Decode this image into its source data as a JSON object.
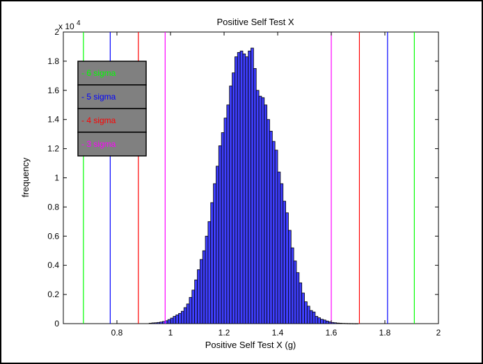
{
  "chart_data": {
    "type": "bar",
    "title": "Positive Self Test X",
    "xlabel": "Positive Self Test X (g)",
    "ylabel": "frequency",
    "xlim": [
      0.6,
      2.0
    ],
    "ylim": [
      0,
      20000
    ],
    "x_ticks": [
      0.8,
      1.0,
      1.2,
      1.4,
      1.6,
      1.8,
      2.0
    ],
    "x_tick_labels": [
      "0.8",
      "1",
      "1.2",
      "1.4",
      "1.6",
      "1.8",
      "2"
    ],
    "y_ticks": [
      0,
      2000,
      4000,
      6000,
      8000,
      10000,
      12000,
      14000,
      16000,
      18000,
      20000
    ],
    "y_tick_labels": [
      "0",
      "0.2",
      "0.4",
      "0.6",
      "0.8",
      "1",
      "1.2",
      "1.4",
      "1.6",
      "1.8",
      "2"
    ],
    "y_exponent_label": "x 10",
    "y_exponent_power": "4",
    "bar_color": "#3f3fff",
    "bar_edge_color": "#000000",
    "bin_width": 0.01,
    "histogram": {
      "bin_centers": [
        0.885,
        0.895,
        0.905,
        0.915,
        0.925,
        0.935,
        0.945,
        0.955,
        0.965,
        0.975,
        0.985,
        0.995,
        1.005,
        1.015,
        1.025,
        1.035,
        1.045,
        1.055,
        1.065,
        1.075,
        1.085,
        1.095,
        1.105,
        1.115,
        1.125,
        1.135,
        1.145,
        1.155,
        1.165,
        1.175,
        1.185,
        1.195,
        1.205,
        1.215,
        1.225,
        1.235,
        1.245,
        1.255,
        1.265,
        1.275,
        1.285,
        1.295,
        1.305,
        1.315,
        1.325,
        1.335,
        1.345,
        1.355,
        1.365,
        1.375,
        1.385,
        1.395,
        1.405,
        1.415,
        1.425,
        1.435,
        1.445,
        1.455,
        1.465,
        1.475,
        1.485,
        1.495,
        1.505,
        1.515,
        1.525,
        1.535,
        1.545,
        1.555,
        1.565,
        1.575,
        1.585,
        1.595,
        1.605,
        1.615,
        1.625,
        1.635,
        1.645,
        1.655,
        1.665,
        1.675,
        1.685,
        1.695
      ],
      "counts": [
        0,
        0,
        0,
        0,
        30,
        50,
        60,
        80,
        110,
        150,
        200,
        280,
        380,
        500,
        600,
        700,
        850,
        1100,
        1350,
        1800,
        2300,
        3000,
        3700,
        4400,
        5000,
        6000,
        7000,
        8300,
        9600,
        10800,
        12200,
        13100,
        14100,
        15000,
        16300,
        17200,
        18300,
        18600,
        18700,
        18500,
        18300,
        18700,
        18900,
        17500,
        16000,
        15600,
        15500,
        15000,
        14000,
        13200,
        12500,
        11900,
        10400,
        9600,
        8400,
        7600,
        6400,
        5200,
        4300,
        3500,
        2800,
        2100,
        1500,
        1200,
        900,
        800,
        500,
        400,
        300,
        250,
        180,
        120,
        80,
        60,
        40,
        30,
        20,
        15,
        10,
        8,
        5,
        3
      ]
    },
    "sigma_lines": [
      {
        "name": "6 sigma",
        "color": "#00ff00",
        "x": [
          0.675,
          1.91
        ]
      },
      {
        "name": "5 sigma",
        "color": "#0000ff",
        "x": [
          0.775,
          1.81
        ]
      },
      {
        "name": "4 sigma",
        "color": "#ff0000",
        "x": [
          0.88,
          1.705
        ]
      },
      {
        "name": "3 sigma",
        "color": "#ff00ff",
        "x": [
          0.98,
          1.6
        ]
      }
    ],
    "legend": {
      "placement": "top-left",
      "background": "#808080",
      "entries": [
        {
          "label": "- 6 sigma",
          "color": "#00ff00"
        },
        {
          "label": "- 5 sigma",
          "color": "#0000ff"
        },
        {
          "label": "- 4 sigma",
          "color": "#ff0000"
        },
        {
          "label": "- 3 sigma",
          "color": "#ff00ff"
        }
      ]
    }
  }
}
